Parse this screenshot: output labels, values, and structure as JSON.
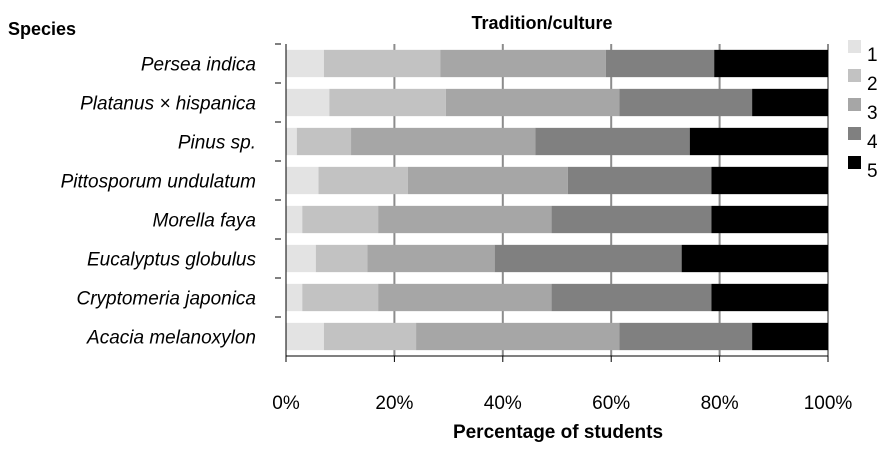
{
  "chart_data": {
    "type": "bar",
    "orientation": "horizontal",
    "stacked": true,
    "normalized_percent": true,
    "title": "Tradition/culture",
    "category_axis_title": "Species",
    "xlabel": "Percentage of students",
    "xlim": [
      0,
      100
    ],
    "x_ticks": [
      "0%",
      "20%",
      "40%",
      "60%",
      "80%",
      "100%"
    ],
    "grid": true,
    "legend_position": "right",
    "categories": [
      "Persea indica",
      "Platanus × hispanica",
      "Pinus sp.",
      "Pittosporum undulatum",
      "Morella faya",
      "Eucalyptus globulus",
      "Cryptomeria japonica",
      "Acacia melanoxylon"
    ],
    "series": [
      {
        "name": "1",
        "color": "#e3e3e3",
        "values": [
          7,
          8,
          2,
          6,
          3,
          5.5,
          3,
          7
        ]
      },
      {
        "name": "2",
        "color": "#c2c2c2",
        "values": [
          21.5,
          21.5,
          10,
          16.5,
          14,
          9.5,
          14,
          17
        ]
      },
      {
        "name": "3",
        "color": "#a6a6a6",
        "values": [
          30.5,
          32,
          34,
          29.5,
          32,
          23.5,
          32,
          37.5
        ]
      },
      {
        "name": "4",
        "color": "#808080",
        "values": [
          20,
          24.5,
          28.5,
          26.5,
          29.5,
          34.5,
          29.5,
          24.5
        ]
      },
      {
        "name": "5",
        "color": "#000000",
        "values": [
          21,
          14,
          25.5,
          21.5,
          21.5,
          27,
          21.5,
          14
        ]
      }
    ]
  }
}
